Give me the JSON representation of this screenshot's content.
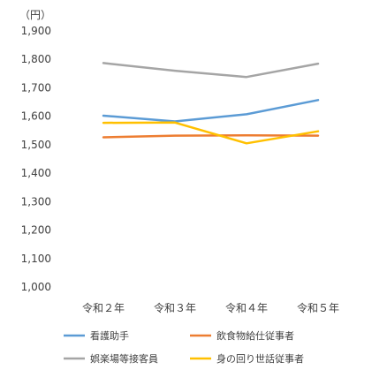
{
  "chart_data": {
    "type": "line",
    "unit_label": "（円）",
    "categories": [
      "令和２年",
      "令和３年",
      "令和４年",
      "令和５年"
    ],
    "ylim": [
      1000,
      1900
    ],
    "yticks": [
      1000,
      1100,
      1200,
      1300,
      1400,
      1500,
      1600,
      1700,
      1800,
      1900
    ],
    "ytick_labels": [
      "1,000",
      "1,100",
      "1,200",
      "1,300",
      "1,400",
      "1,500",
      "1,600",
      "1,700",
      "1,800",
      "1,900"
    ],
    "grid": false,
    "legend_position": "bottom",
    "series": [
      {
        "name": "看護助手",
        "color": "#5B9BD5",
        "values": [
          1602,
          1582,
          1607,
          1657
        ]
      },
      {
        "name": "飲食物給仕従事者",
        "color": "#ED7D31",
        "values": [
          1526,
          1532,
          1533,
          1532
        ]
      },
      {
        "name": "娯楽場等接客員",
        "color": "#A5A5A5",
        "values": [
          1787,
          1760,
          1738,
          1785
        ]
      },
      {
        "name": "身の回り世話従事者",
        "color": "#FFC000",
        "values": [
          1577,
          1578,
          1505,
          1547
        ]
      }
    ]
  }
}
